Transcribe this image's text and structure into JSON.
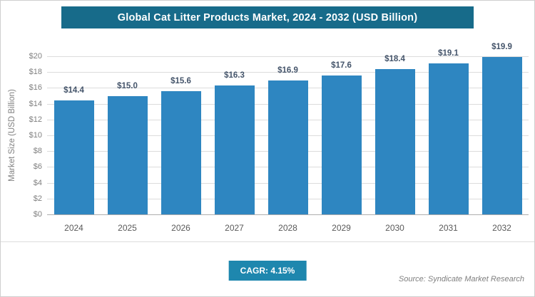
{
  "header": {
    "title": "Global Cat Litter Products Market, 2024 - 2032 (USD Billion)"
  },
  "chart_data": {
    "type": "bar",
    "title": "Global Cat Litter Products Market, 2024 - 2032 (USD Billion)",
    "categories": [
      "2024",
      "2025",
      "2026",
      "2027",
      "2028",
      "2029",
      "2030",
      "2031",
      "2032"
    ],
    "values": [
      14.4,
      15.0,
      15.6,
      16.3,
      16.9,
      17.6,
      18.4,
      19.1,
      19.9
    ],
    "value_labels": [
      "$14.4",
      "$15.0",
      "$15.6",
      "$16.3",
      "$16.9",
      "$17.6",
      "$18.4",
      "$19.1",
      "$19.9"
    ],
    "xlabel": "",
    "ylabel": "Market Size (USD Billion)",
    "ylim": [
      0,
      20
    ],
    "ytick_step": 2,
    "ytick_labels": [
      "$0",
      "$2",
      "$4",
      "$6",
      "$8",
      "$10",
      "$12",
      "$14",
      "$16",
      "$18",
      "$20"
    ],
    "grid": true,
    "legend": "none",
    "bar_color": "#2E86C1"
  },
  "footer": {
    "cagr_label": "CAGR: 4.15%",
    "source": "Source: Syndicate Market Research"
  },
  "colors": {
    "banner_bg": "#176B8A",
    "badge_bg": "#1E87AE",
    "bar": "#2E86C1",
    "value_label_text": "#44546A",
    "axis_text": "#808080",
    "x_label_text": "#595959",
    "gridline": "#DCDCDC",
    "source_text": "#7F7F7F"
  }
}
